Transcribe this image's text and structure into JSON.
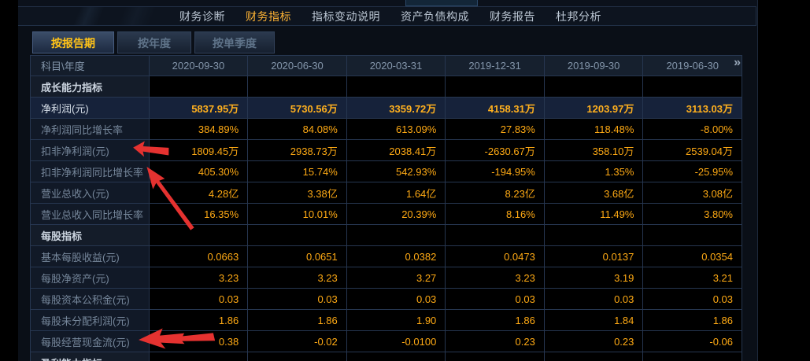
{
  "nav": {
    "items": [
      {
        "name": "financial-diagnosis",
        "label": "财务诊断",
        "active": false
      },
      {
        "name": "financial-indicators",
        "label": "财务指标",
        "active": true
      },
      {
        "name": "indicator-change-notes",
        "label": "指标变动说明",
        "active": false
      },
      {
        "name": "balance-sheet-structure",
        "label": "资产负债构成",
        "active": false
      },
      {
        "name": "financial-report",
        "label": "财务报告",
        "active": false
      },
      {
        "name": "dupont-analysis",
        "label": "杜邦分析",
        "active": false
      }
    ]
  },
  "tabs": {
    "items": [
      {
        "name": "by-report-period",
        "label": "按报告期",
        "active": true
      },
      {
        "name": "by-year",
        "label": "按年度",
        "active": false
      },
      {
        "name": "by-single-quarter",
        "label": "按单季度",
        "active": false
      }
    ]
  },
  "table": {
    "corner_label": "科目\\年度",
    "columns": [
      "2020-09-30",
      "2020-06-30",
      "2020-03-31",
      "2019-12-31",
      "2019-09-30",
      "2019-06-30"
    ],
    "more_icon": "»",
    "rows": [
      {
        "type": "section",
        "label": "成长能力指标",
        "values": [
          "",
          "",
          "",
          "",
          "",
          ""
        ]
      },
      {
        "type": "data",
        "highlight": true,
        "label": "净利润(元)",
        "values": [
          "5837.95万",
          "5730.56万",
          "3359.72万",
          "4158.31万",
          "1203.97万",
          "3113.03万"
        ]
      },
      {
        "type": "data",
        "label": "净利润同比增长率",
        "values": [
          "384.89%",
          "84.08%",
          "613.09%",
          "27.83%",
          "118.48%",
          "-8.00%"
        ]
      },
      {
        "type": "data",
        "label": "扣非净利润(元)",
        "values": [
          "1809.45万",
          "2938.73万",
          "2038.41万",
          "-2630.67万",
          "358.10万",
          "2539.04万"
        ]
      },
      {
        "type": "data",
        "label": "扣非净利润同比增长率",
        "values": [
          "405.30%",
          "15.74%",
          "542.93%",
          "-194.95%",
          "1.35%",
          "-25.95%"
        ]
      },
      {
        "type": "data",
        "label": "营业总收入(元)",
        "values": [
          "4.28亿",
          "3.38亿",
          "1.64亿",
          "8.23亿",
          "3.68亿",
          "3.08亿"
        ]
      },
      {
        "type": "data",
        "label": "营业总收入同比增长率",
        "values": [
          "16.35%",
          "10.01%",
          "20.39%",
          "8.16%",
          "11.49%",
          "3.80%"
        ]
      },
      {
        "type": "section",
        "label": "每股指标",
        "values": [
          "",
          "",
          "",
          "",
          "",
          ""
        ]
      },
      {
        "type": "data",
        "label": "基本每股收益(元)",
        "values": [
          "0.0663",
          "0.0651",
          "0.0382",
          "0.0473",
          "0.0137",
          "0.0354"
        ]
      },
      {
        "type": "data",
        "label": "每股净资产(元)",
        "values": [
          "3.23",
          "3.23",
          "3.27",
          "3.23",
          "3.19",
          "3.21"
        ]
      },
      {
        "type": "data",
        "label": "每股资本公积金(元)",
        "values": [
          "0.03",
          "0.03",
          "0.03",
          "0.03",
          "0.03",
          "0.03"
        ]
      },
      {
        "type": "data",
        "label": "每股未分配利润(元)",
        "values": [
          "1.86",
          "1.86",
          "1.90",
          "1.86",
          "1.84",
          "1.86"
        ]
      },
      {
        "type": "data",
        "label": "每股经营现金流(元)",
        "values": [
          "0.38",
          "-0.02",
          "-0.0100",
          "0.23",
          "0.23",
          "-0.06"
        ]
      },
      {
        "type": "section",
        "label": "盈利能力指标",
        "values": [
          "",
          "",
          "",
          "",
          "",
          ""
        ]
      }
    ]
  },
  "colors": {
    "value_orange": "#ffaa14",
    "active_nav_orange": "#ffb434",
    "active_tab_yellow": "#ffc318",
    "arrow_red": "#e53230",
    "table_border": "#263650",
    "highlight_row_bg": "#16223a"
  }
}
